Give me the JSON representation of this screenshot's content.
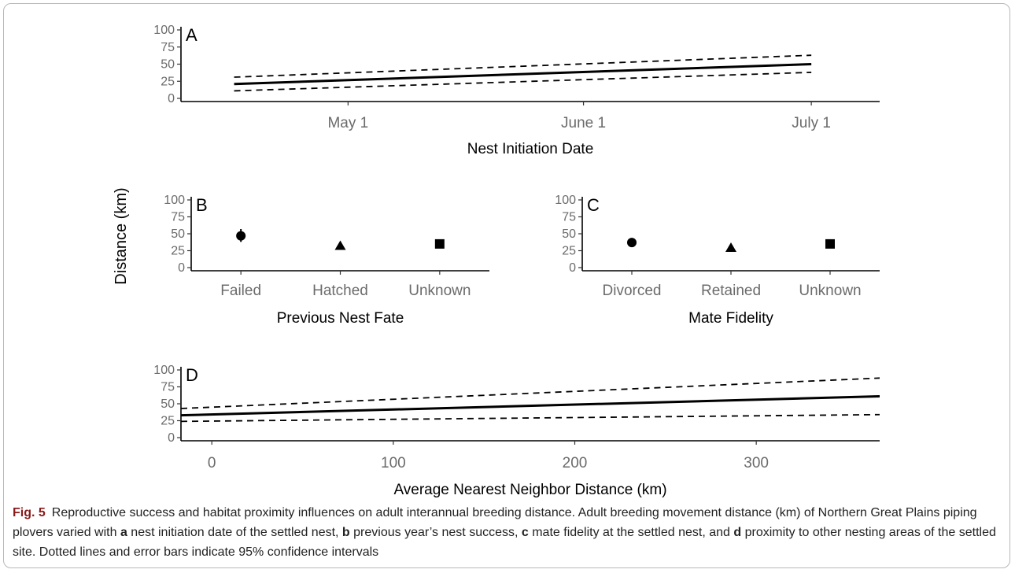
{
  "chart_data": [
    {
      "panel": "A",
      "type": "line",
      "xlabel": "Nest Initiation Date",
      "x_ticks": [
        "May 1",
        "June 1",
        "July 1"
      ],
      "x": [
        "2017-04-16",
        "2017-07-01"
      ],
      "series": [
        {
          "values": [
            21,
            50
          ]
        },
        {
          "values": [
            31,
            63
          ]
        },
        {
          "values": [
            11,
            38
          ]
        }
      ],
      "ylim": [
        0,
        100
      ],
      "y_ticks": [
        0,
        25,
        50,
        75,
        100
      ]
    },
    {
      "panel": "B",
      "type": "scatter",
      "xlabel": "Previous Nest Fate",
      "categories": [
        "Failed",
        "Hatched",
        "Unknown"
      ],
      "values": [
        47,
        32,
        35
      ],
      "ci": [
        [
          38,
          57
        ],
        [
          27,
          38
        ],
        [
          30,
          40
        ]
      ],
      "markers": [
        "circle",
        "triangle",
        "square"
      ],
      "ylim": [
        0,
        100
      ],
      "y_ticks": [
        0,
        25,
        50,
        75,
        100
      ]
    },
    {
      "panel": "C",
      "type": "scatter",
      "xlabel": "Mate Fidelity",
      "categories": [
        "Divorced",
        "Retained",
        "Unknown"
      ],
      "values": [
        37,
        29,
        35
      ],
      "ci": [
        [
          31,
          43
        ],
        [
          24,
          34
        ],
        [
          30,
          40
        ]
      ],
      "markers": [
        "circle",
        "triangle",
        "square"
      ],
      "ylim": [
        0,
        100
      ],
      "y_ticks": [
        0,
        25,
        50,
        75,
        100
      ]
    },
    {
      "panel": "D",
      "type": "line",
      "xlabel": "Average Nearest Neighbor Distance (km)",
      "x_ticks": [
        0,
        100,
        200,
        300
      ],
      "x": [
        -17,
        368
      ],
      "xlim": [
        -17,
        368
      ],
      "series": [
        {
          "values": [
            33,
            61
          ]
        },
        {
          "values": [
            43,
            88
          ]
        },
        {
          "values": [
            24,
            34
          ]
        }
      ],
      "ylim": [
        0,
        100
      ],
      "y_ticks": [
        0,
        25,
        50,
        75,
        100
      ]
    }
  ],
  "shared_ylabel": "Distance (km)",
  "caption": {
    "label": "Fig. 5",
    "text_1": "Reproductive success and habitat proximity influences on adult interannual breeding distance. Adult breeding movement distance (km) of Northern Great Plains piping plovers varied with ",
    "a": "a",
    "text_2": " nest initiation date of the settled nest, ",
    "b": "b",
    "text_3": " previous year’s nest success, ",
    "c": "c",
    "text_4": " mate fidelity at the settled nest, and ",
    "d": "d",
    "text_5": " proximity to other nesting areas of the settled site. Dotted lines and error bars indicate 95% confidence intervals"
  }
}
